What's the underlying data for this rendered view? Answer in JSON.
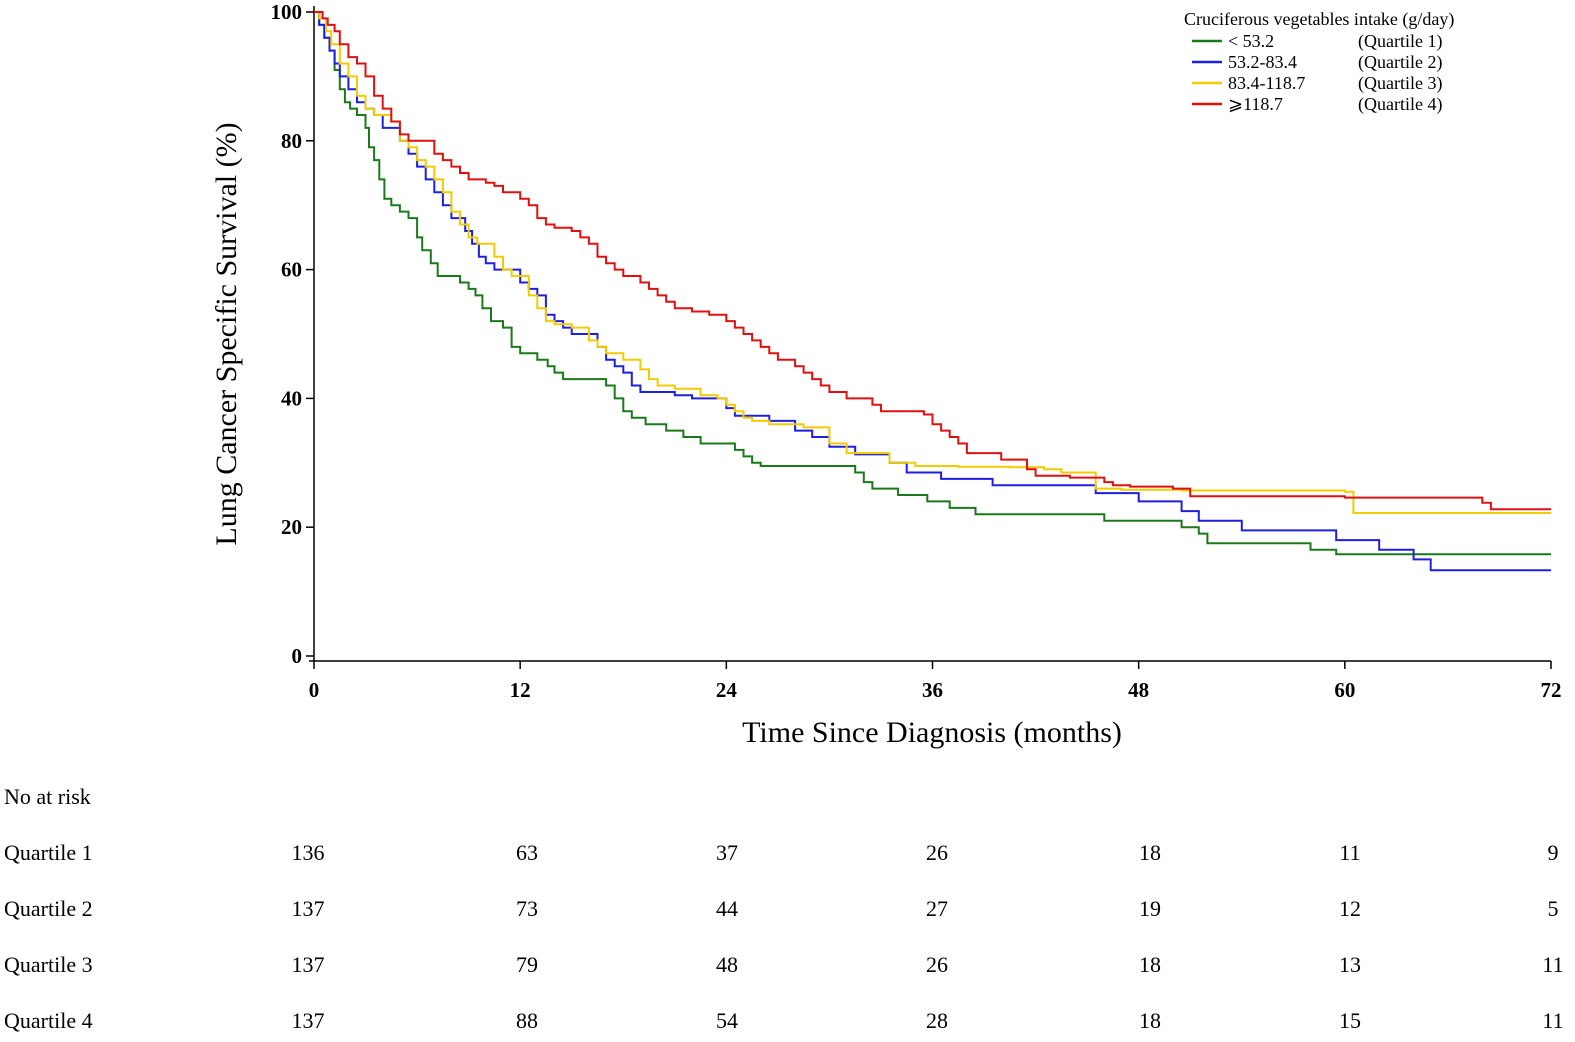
{
  "chart_data": {
    "type": "line",
    "subtype": "kaplan-meier",
    "title": "",
    "xlabel": "Time Since Diagnosis (months)",
    "ylabel": "Lung Cancer Specific Survival (%)",
    "xlim": [
      0,
      72
    ],
    "ylim": [
      0,
      100
    ],
    "xticks": [
      0,
      12,
      24,
      36,
      48,
      60,
      72
    ],
    "yticks": [
      0,
      20,
      40,
      60,
      80,
      100
    ],
    "grid": false,
    "legend": {
      "title": "Cruciferous vegetables intake (g/day)",
      "placement": "top-right",
      "entries": [
        {
          "range": "< 53.2",
          "group": "(Quartile 1)",
          "color": "#1a7a1a"
        },
        {
          "range": "53.2-83.4",
          "group": "(Quartile 2)",
          "color": "#1f1fe0"
        },
        {
          "range": "83.4-118.7",
          "group": "(Quartile 3)",
          "color": "#f2cc00"
        },
        {
          "range": "⩾118.7",
          "group": "(Quartile 4)",
          "color": "#e01010"
        }
      ]
    },
    "series": [
      {
        "name": "Quartile 1",
        "color": "#1a7a1a",
        "points": [
          [
            0,
            100
          ],
          [
            0.3,
            98
          ],
          [
            0.6,
            96
          ],
          [
            0.9,
            94
          ],
          [
            1.2,
            91
          ],
          [
            1.5,
            88
          ],
          [
            1.8,
            86
          ],
          [
            2.1,
            85
          ],
          [
            2.5,
            84
          ],
          [
            3.0,
            82
          ],
          [
            3.2,
            79
          ],
          [
            3.5,
            77
          ],
          [
            3.8,
            74
          ],
          [
            4.1,
            71
          ],
          [
            4.5,
            70
          ],
          [
            5.0,
            69
          ],
          [
            5.5,
            68
          ],
          [
            6.0,
            65
          ],
          [
            6.3,
            63
          ],
          [
            6.8,
            61
          ],
          [
            7.2,
            59
          ],
          [
            8.5,
            58
          ],
          [
            9.0,
            57
          ],
          [
            9.4,
            56
          ],
          [
            9.8,
            54
          ],
          [
            10.3,
            52
          ],
          [
            11.0,
            51
          ],
          [
            11.5,
            48
          ],
          [
            12.0,
            47
          ],
          [
            13.0,
            46
          ],
          [
            13.6,
            45
          ],
          [
            14.0,
            44
          ],
          [
            14.5,
            43
          ],
          [
            17.0,
            42
          ],
          [
            17.5,
            40
          ],
          [
            18.0,
            38
          ],
          [
            18.5,
            37
          ],
          [
            19.3,
            36
          ],
          [
            20.5,
            35
          ],
          [
            21.5,
            34
          ],
          [
            22.5,
            33
          ],
          [
            24.5,
            32
          ],
          [
            25.0,
            31
          ],
          [
            25.5,
            30
          ],
          [
            26.0,
            29.5
          ],
          [
            31.5,
            28.5
          ],
          [
            32.0,
            27
          ],
          [
            32.5,
            26
          ],
          [
            34.0,
            25
          ],
          [
            35.7,
            24
          ],
          [
            37.0,
            23
          ],
          [
            38.5,
            22
          ],
          [
            46.0,
            21
          ],
          [
            50.5,
            20
          ],
          [
            51.5,
            19
          ],
          [
            52.0,
            17.5
          ],
          [
            58.0,
            16.5
          ],
          [
            59.5,
            15.8
          ],
          [
            72,
            15.8
          ]
        ]
      },
      {
        "name": "Quartile 2",
        "color": "#1f1fe0",
        "points": [
          [
            0,
            100
          ],
          [
            0.3,
            98
          ],
          [
            0.6,
            96
          ],
          [
            0.9,
            94
          ],
          [
            1.2,
            92
          ],
          [
            1.5,
            90
          ],
          [
            2.0,
            88
          ],
          [
            2.5,
            86
          ],
          [
            3.0,
            85
          ],
          [
            3.5,
            84
          ],
          [
            4.0,
            82
          ],
          [
            5.0,
            80
          ],
          [
            5.5,
            78
          ],
          [
            6.0,
            76
          ],
          [
            6.5,
            74
          ],
          [
            7.0,
            72
          ],
          [
            7.5,
            70
          ],
          [
            8.0,
            68
          ],
          [
            8.8,
            66
          ],
          [
            9.2,
            64
          ],
          [
            9.6,
            62
          ],
          [
            10.0,
            61
          ],
          [
            10.5,
            60
          ],
          [
            12.0,
            58
          ],
          [
            12.5,
            57
          ],
          [
            13.0,
            56
          ],
          [
            13.5,
            53
          ],
          [
            14.0,
            52
          ],
          [
            14.5,
            51
          ],
          [
            15.0,
            50
          ],
          [
            16.5,
            48
          ],
          [
            17.0,
            46
          ],
          [
            17.5,
            45
          ],
          [
            18.0,
            44
          ],
          [
            18.5,
            42
          ],
          [
            19.0,
            41
          ],
          [
            21.0,
            40.5
          ],
          [
            22.0,
            40
          ],
          [
            24.0,
            38.5
          ],
          [
            24.5,
            37.3
          ],
          [
            26.5,
            36.5
          ],
          [
            28.0,
            35
          ],
          [
            29.0,
            34
          ],
          [
            30.0,
            32.5
          ],
          [
            31.5,
            31.3
          ],
          [
            33.5,
            30
          ],
          [
            34.5,
            28.5
          ],
          [
            36.5,
            27.5
          ],
          [
            39.5,
            26.5
          ],
          [
            45.5,
            25.3
          ],
          [
            48.0,
            24
          ],
          [
            50.5,
            22.5
          ],
          [
            51.5,
            21
          ],
          [
            54.0,
            19.5
          ],
          [
            59.5,
            18
          ],
          [
            62.0,
            16.5
          ],
          [
            64.0,
            15
          ],
          [
            65.0,
            13.3
          ],
          [
            72,
            13.3
          ]
        ]
      },
      {
        "name": "Quartile 3",
        "color": "#f2cc00",
        "points": [
          [
            0,
            100
          ],
          [
            0.3,
            99
          ],
          [
            0.7,
            97
          ],
          [
            1.0,
            95
          ],
          [
            1.5,
            92
          ],
          [
            2.0,
            90
          ],
          [
            2.5,
            87
          ],
          [
            3.0,
            85
          ],
          [
            3.5,
            84
          ],
          [
            4.5,
            83
          ],
          [
            5.0,
            80
          ],
          [
            5.5,
            79
          ],
          [
            6.0,
            77
          ],
          [
            6.5,
            76
          ],
          [
            7.0,
            74
          ],
          [
            7.5,
            72
          ],
          [
            8.0,
            69
          ],
          [
            8.5,
            67
          ],
          [
            9.0,
            65
          ],
          [
            9.5,
            64
          ],
          [
            10.5,
            62
          ],
          [
            11.0,
            60
          ],
          [
            11.5,
            59
          ],
          [
            12.5,
            56
          ],
          [
            13.0,
            54
          ],
          [
            13.5,
            52
          ],
          [
            14.0,
            51.5
          ],
          [
            15.0,
            51
          ],
          [
            16.0,
            49
          ],
          [
            16.5,
            48
          ],
          [
            17.0,
            47
          ],
          [
            18.0,
            46
          ],
          [
            19.0,
            44.5
          ],
          [
            19.5,
            43
          ],
          [
            20.0,
            42
          ],
          [
            21.0,
            41.5
          ],
          [
            22.5,
            40.5
          ],
          [
            23.5,
            40
          ],
          [
            24.0,
            39
          ],
          [
            24.5,
            38
          ],
          [
            25.0,
            37
          ],
          [
            25.5,
            36.5
          ],
          [
            26.5,
            36
          ],
          [
            28.5,
            35.5
          ],
          [
            30.0,
            33
          ],
          [
            31.0,
            31.5
          ],
          [
            33.5,
            30
          ],
          [
            35.0,
            29.5
          ],
          [
            37.5,
            29.4
          ],
          [
            40.5,
            29.3
          ],
          [
            42.5,
            29
          ],
          [
            43.5,
            28.5
          ],
          [
            45.5,
            26
          ],
          [
            47.0,
            25.8
          ],
          [
            50.5,
            25.7
          ],
          [
            60.0,
            25.5
          ],
          [
            60.5,
            22.2
          ],
          [
            72,
            22.2
          ]
        ]
      },
      {
        "name": "Quartile 4",
        "color": "#e01010",
        "points": [
          [
            0,
            100
          ],
          [
            0.5,
            99
          ],
          [
            0.8,
            98
          ],
          [
            1.2,
            97
          ],
          [
            1.5,
            95
          ],
          [
            2.0,
            93
          ],
          [
            2.5,
            92
          ],
          [
            3.0,
            90
          ],
          [
            3.5,
            87
          ],
          [
            4.0,
            85
          ],
          [
            4.5,
            83
          ],
          [
            5.0,
            81
          ],
          [
            5.5,
            80
          ],
          [
            7.0,
            78
          ],
          [
            7.5,
            77
          ],
          [
            8.0,
            76
          ],
          [
            8.5,
            75
          ],
          [
            9.0,
            74
          ],
          [
            10.0,
            73.5
          ],
          [
            10.5,
            73
          ],
          [
            11.0,
            72
          ],
          [
            12.0,
            71
          ],
          [
            12.5,
            70
          ],
          [
            13.0,
            68
          ],
          [
            13.5,
            67
          ],
          [
            14.0,
            66.5
          ],
          [
            15.0,
            66
          ],
          [
            15.5,
            65
          ],
          [
            16.0,
            64
          ],
          [
            16.5,
            62
          ],
          [
            17.0,
            61
          ],
          [
            17.5,
            60
          ],
          [
            18.0,
            59
          ],
          [
            19.0,
            58
          ],
          [
            19.5,
            57
          ],
          [
            20.0,
            56
          ],
          [
            20.5,
            55
          ],
          [
            21.0,
            54
          ],
          [
            22.0,
            53.5
          ],
          [
            23.0,
            53
          ],
          [
            24.0,
            52
          ],
          [
            24.5,
            51
          ],
          [
            25.0,
            50
          ],
          [
            25.5,
            49
          ],
          [
            26.0,
            48
          ],
          [
            26.5,
            47
          ],
          [
            27.0,
            46
          ],
          [
            28.0,
            45
          ],
          [
            28.5,
            44
          ],
          [
            29.0,
            43
          ],
          [
            29.5,
            42
          ],
          [
            30.0,
            41
          ],
          [
            31.0,
            40
          ],
          [
            32.5,
            39
          ],
          [
            33.0,
            38
          ],
          [
            35.5,
            37.5
          ],
          [
            36.0,
            36
          ],
          [
            36.5,
            35
          ],
          [
            37.0,
            34
          ],
          [
            37.5,
            33
          ],
          [
            38.0,
            31.5
          ],
          [
            40.0,
            30.5
          ],
          [
            41.5,
            29
          ],
          [
            42.0,
            28
          ],
          [
            44.0,
            27.7
          ],
          [
            46.0,
            27
          ],
          [
            46.5,
            26.5
          ],
          [
            47.5,
            26.3
          ],
          [
            50.0,
            26
          ],
          [
            51.0,
            24.8
          ],
          [
            60.0,
            24.6
          ],
          [
            68.0,
            23.8
          ],
          [
            68.5,
            22.8
          ],
          [
            72,
            22.8
          ]
        ]
      }
    ]
  },
  "risk_table": {
    "header": "No at risk",
    "timepoints": [
      0,
      12,
      24,
      36,
      48,
      60,
      72
    ],
    "rows": [
      {
        "label": "Quartile 1",
        "values": [
          "136",
          "63",
          "37",
          "26",
          "18",
          "11",
          "9"
        ]
      },
      {
        "label": "Quartile 2",
        "values": [
          "137",
          "73",
          "44",
          "27",
          "19",
          "12",
          "5"
        ]
      },
      {
        "label": "Quartile 3",
        "values": [
          "137",
          "79",
          "48",
          "26",
          "18",
          "13",
          "11"
        ]
      },
      {
        "label": "Quartile 4",
        "values": [
          "137",
          "88",
          "54",
          "28",
          "18",
          "15",
          "11"
        ]
      }
    ]
  }
}
